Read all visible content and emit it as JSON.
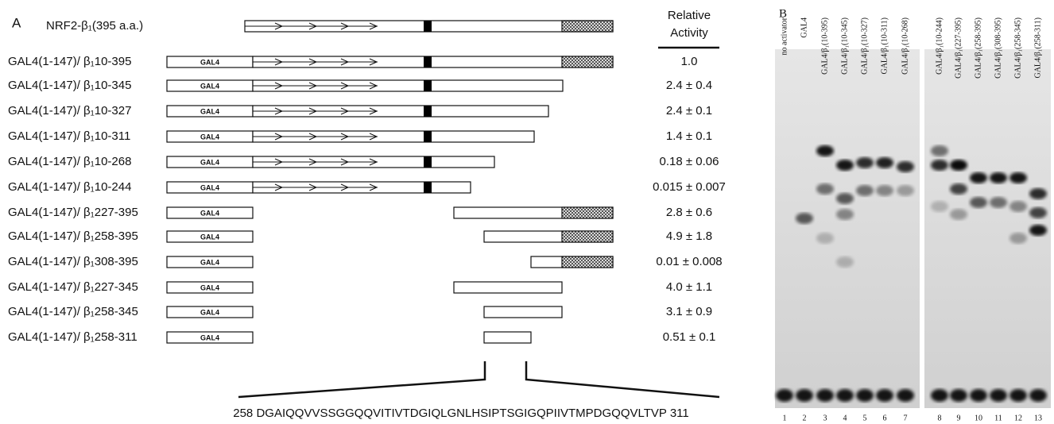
{
  "panel_a": {
    "label": "A",
    "full_length": "NRF2-β₁(395 a.a.)",
    "activity_header": [
      "Relative",
      "Activity"
    ],
    "gal4_box_label": "GAL4",
    "constructs": [
      {
        "label": "GAL4(1-147)/ β₁10-395",
        "activity": "1.0"
      },
      {
        "label": "GAL4(1-147)/ β₁10-345",
        "activity": "2.4 ± 0.4"
      },
      {
        "label": "GAL4(1-147)/ β₁10-327",
        "activity": "2.4 ± 0.1"
      },
      {
        "label": "GAL4(1-147)/ β₁10-311",
        "activity": "1.4 ± 0.1"
      },
      {
        "label": "GAL4(1-147)/ β₁10-268",
        "activity": "0.18 ± 0.06"
      },
      {
        "label": "GAL4(1-147)/ β₁10-244",
        "activity": "0.015 ± 0.007"
      },
      {
        "label": "GAL4(1-147)/ β₁227-395",
        "activity": "2.8 ± 0.6"
      },
      {
        "label": "GAL4(1-147)/ β₁258-395",
        "activity": "4.9 ± 1.8"
      },
      {
        "label": "GAL4(1-147)/ β₁308-395",
        "activity": "0.01 ± 0.008"
      },
      {
        "label": "GAL4(1-147)/ β₁227-345",
        "activity": "4.0 ± 1.1"
      },
      {
        "label": "GAL4(1-147)/ β₁258-345",
        "activity": "3.1 ± 0.9"
      },
      {
        "label": "GAL4(1-147)/ β₁258-311",
        "activity": "0.51 ± 0.1"
      }
    ],
    "sequence": "258 DGAIQQVVSSGGQQVITIVTDGIQLGNLHSIPTSGIGQPIIVTMPDGQQVLTVP 311"
  },
  "panel_b": {
    "label": "B",
    "lanes": [
      {
        "name": "no activator",
        "number": "1"
      },
      {
        "name": "GAL4",
        "number": "2"
      },
      {
        "name": "GAL4/β₁(10-395)",
        "number": "3"
      },
      {
        "name": "GAL4/β₁(10-345)",
        "number": "4"
      },
      {
        "name": "GAL4/β₁(10-327)",
        "number": "5"
      },
      {
        "name": "GAL4/β₁(10-311)",
        "number": "6"
      },
      {
        "name": "GAL4/β₁(10-268)",
        "number": "7"
      },
      {
        "name": "GAL4/β₁(10-244)",
        "number": "8"
      },
      {
        "name": "GAL4/β₁(227-395)",
        "number": "9"
      },
      {
        "name": "GAL4/β₁(258-395)",
        "number": "10"
      },
      {
        "name": "GAL4/β₁(308-395)",
        "number": "11"
      },
      {
        "name": "GAL4/β₁(258-345)",
        "number": "12"
      },
      {
        "name": "GAL4/β₁(258-311)",
        "number": "13"
      }
    ]
  }
}
